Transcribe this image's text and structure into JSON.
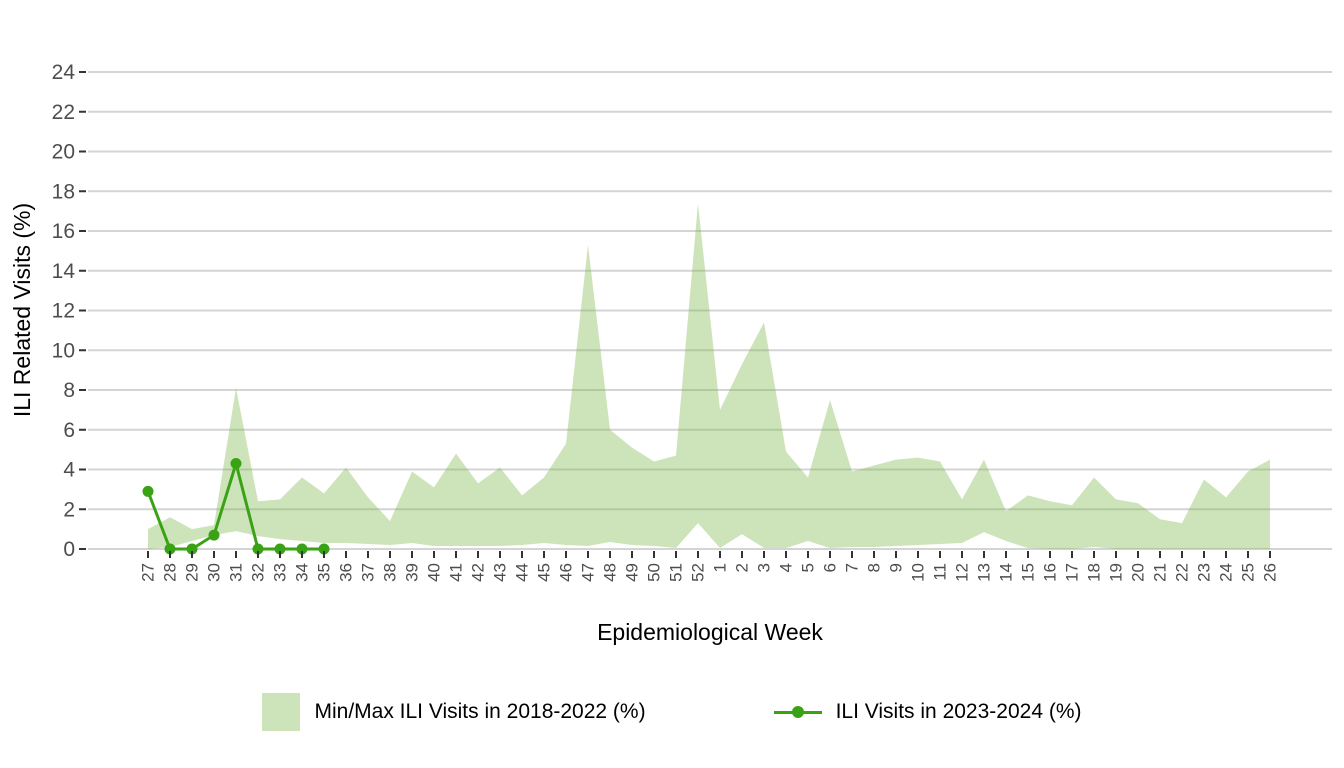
{
  "chart_data": {
    "type": "area",
    "subtype": "min-max band with overlaid line+markers",
    "title": "",
    "xlabel": "Epidemiological Week",
    "ylabel": "ILI Related Visits (%)",
    "ylim": [
      0,
      24
    ],
    "y_ticks": [
      0,
      2,
      4,
      6,
      8,
      10,
      12,
      14,
      16,
      18,
      20,
      22,
      24
    ],
    "grid": "horizontal major gridlines, light gray, white background",
    "legend_position": "bottom-center",
    "weeks": [
      "27",
      "28",
      "29",
      "30",
      "31",
      "32",
      "33",
      "34",
      "35",
      "36",
      "37",
      "38",
      "39",
      "40",
      "41",
      "42",
      "43",
      "44",
      "45",
      "46",
      "47",
      "48",
      "49",
      "50",
      "51",
      "52",
      "1",
      "2",
      "3",
      "4",
      "5",
      "6",
      "7",
      "8",
      "9",
      "10",
      "11",
      "12",
      "13",
      "14",
      "15",
      "16",
      "17",
      "18",
      "19",
      "20",
      "21",
      "22",
      "23",
      "24",
      "25",
      "26"
    ],
    "series": [
      {
        "name": "Min/Max ILI Visits in 2018-2022 (%)",
        "kind": "band",
        "max": [
          1.0,
          1.6,
          1.0,
          1.2,
          8.1,
          2.4,
          2.5,
          3.6,
          2.8,
          4.1,
          2.6,
          1.4,
          3.9,
          3.1,
          4.8,
          3.3,
          4.1,
          2.7,
          3.6,
          5.3,
          15.3,
          6.0,
          5.1,
          4.4,
          4.7,
          17.4,
          7.0,
          9.3,
          11.4,
          4.9,
          3.6,
          7.5,
          3.9,
          4.2,
          4.5,
          4.6,
          4.4,
          2.5,
          4.5,
          1.9,
          2.7,
          2.4,
          2.2,
          3.6,
          2.5,
          2.3,
          1.5,
          1.3,
          3.5,
          2.6,
          3.9,
          4.5
        ],
        "min": [
          0,
          0.1,
          0.4,
          0.7,
          0.9,
          0.65,
          0.5,
          0.4,
          0.3,
          0.3,
          0.25,
          0.2,
          0.3,
          0.15,
          0.15,
          0.15,
          0.15,
          0.2,
          0.3,
          0.2,
          0.15,
          0.35,
          0.2,
          0.15,
          0.05,
          1.3,
          0.05,
          0.75,
          0.05,
          0.05,
          0.4,
          0.05,
          0.1,
          0.1,
          0.15,
          0.2,
          0.25,
          0.3,
          0.85,
          0.4,
          0.05,
          0,
          0,
          0.1,
          0,
          0,
          0,
          0,
          0,
          0,
          0,
          0
        ]
      },
      {
        "name": "ILI Visits in 2023-2024 (%)",
        "kind": "line+markers",
        "weeks": [
          "27",
          "28",
          "29",
          "30",
          "31",
          "32",
          "33",
          "34",
          "35"
        ],
        "values": [
          2.9,
          0,
          0,
          0.7,
          4.3,
          0,
          0,
          0,
          0
        ]
      }
    ],
    "colors": {
      "band_fill": "#7cb749",
      "band_fill_opacity": 0.38,
      "line": "#3aa315",
      "gridline": "#d4d4d4",
      "tick_mark": "#333333",
      "tick_label": "#4d4d4d",
      "axis_title": "#000000",
      "background": "#ffffff"
    }
  },
  "legend": {
    "items": [
      {
        "label": "Min/Max ILI Visits in 2018-2022 (%)",
        "key": "band-swatch"
      },
      {
        "label": "ILI Visits in 2023-2024 (%)",
        "key": "line-with-dot"
      }
    ]
  }
}
